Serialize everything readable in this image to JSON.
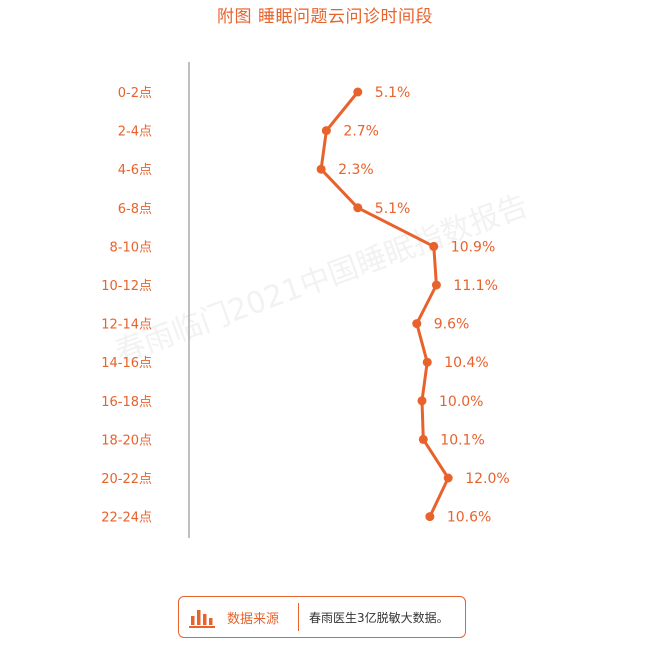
{
  "title": "附图 睡眠问题云问诊时间段",
  "watermark": "春雨临门2021中国睡眠指数报告",
  "source": {
    "label": "数据来源",
    "text": "春雨医生3亿脱敏大数据。",
    "icon": "bar-chart-icon"
  },
  "colors": {
    "accent": "#e8622c",
    "axis": "#aaaaaa"
  },
  "chart_data": {
    "type": "line",
    "orientation": "vertical-categories",
    "categories": [
      "0-2点",
      "2-4点",
      "4-6点",
      "6-8点",
      "8-10点",
      "10-12点",
      "12-14点",
      "14-16点",
      "16-18点",
      "18-20点",
      "20-22点",
      "22-24点"
    ],
    "values": [
      5.1,
      2.7,
      2.3,
      5.1,
      10.9,
      11.1,
      9.6,
      10.4,
      10.0,
      10.1,
      12.0,
      10.6
    ],
    "labels": [
      "5.1%",
      "2.7%",
      "2.3%",
      "5.1%",
      "10.9%",
      "11.1%",
      "9.6%",
      "10.4%",
      "10.0%",
      "10.1%",
      "12.0%",
      "10.6%"
    ],
    "title": "附图 睡眠问题云问诊时间段",
    "unit": "%",
    "grid": false,
    "legend": "none"
  }
}
